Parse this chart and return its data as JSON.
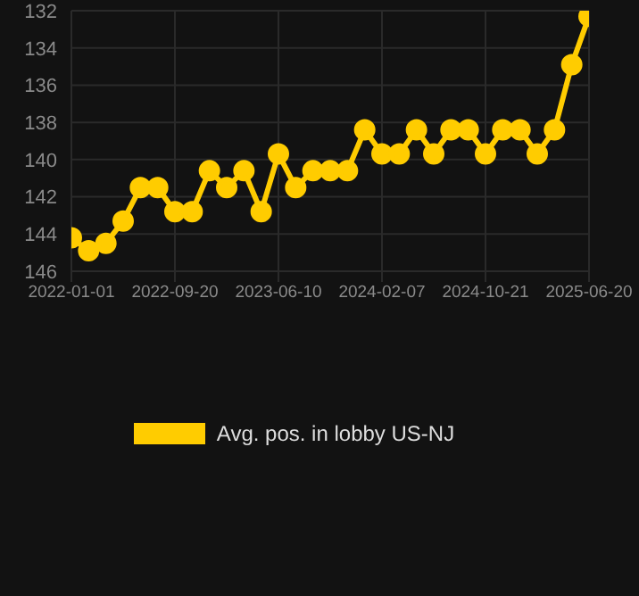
{
  "chart_data": {
    "type": "line",
    "categories": [
      "2022-01-01",
      null,
      null,
      null,
      null,
      null,
      "2022-09-20",
      null,
      null,
      null,
      null,
      null,
      "2023-06-10",
      null,
      null,
      null,
      null,
      null,
      "2024-02-07",
      null,
      null,
      null,
      null,
      null,
      "2024-10-21",
      null,
      null,
      null,
      null,
      null,
      "2025-06-20"
    ],
    "series": [
      {
        "name": "Avg. pos. in lobby US-NJ",
        "color": "#ffcc00",
        "values": [
          144.2,
          144.9,
          144.5,
          143.3,
          141.5,
          141.5,
          142.8,
          142.8,
          140.6,
          141.5,
          140.6,
          142.8,
          139.7,
          141.5,
          140.6,
          140.6,
          140.6,
          138.4,
          139.7,
          139.7,
          138.4,
          139.7,
          138.4,
          138.4,
          139.7,
          138.4,
          138.4,
          139.7,
          138.4,
          134.9,
          132.3
        ]
      }
    ],
    "ylim": [
      146,
      132
    ],
    "yticks": [
      132,
      134,
      136,
      138,
      140,
      142,
      144,
      146
    ],
    "grid": true,
    "legend": "bottom",
    "marker": "circle",
    "line_style": "solid"
  }
}
